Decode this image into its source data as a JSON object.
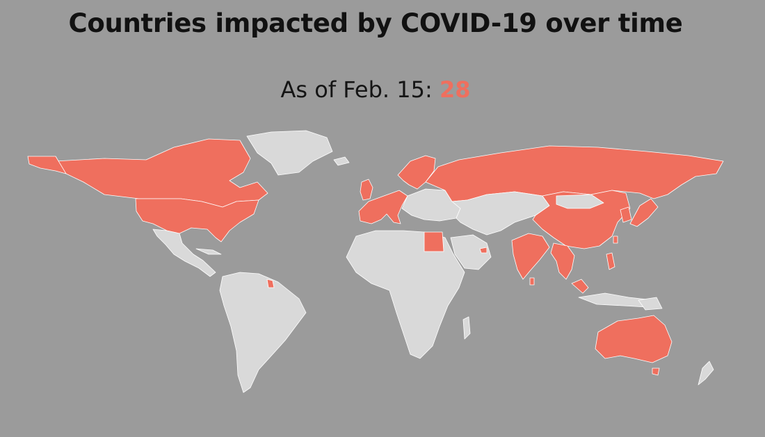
{
  "title": "Countries impacted by COVID-19 over time",
  "subtitle": {
    "prefix": "As of Feb. 15:",
    "count": "28"
  },
  "colors": {
    "background": "#9b9b9b",
    "unaffected": "#d9d9d9",
    "affected": "#ef6f5e",
    "count": "#ef6f5e"
  },
  "map": {
    "affected_regions": [
      "United States",
      "Canada",
      "France",
      "United Kingdom",
      "Germany",
      "Italy",
      "Spain",
      "Belgium",
      "Finland",
      "Sweden",
      "Russia",
      "Egypt",
      "United Arab Emirates",
      "India",
      "Nepal",
      "Sri Lanka",
      "China",
      "Japan",
      "South Korea",
      "Taiwan",
      "Philippines",
      "Vietnam",
      "Cambodia",
      "Thailand",
      "Malaysia",
      "Singapore",
      "Australia",
      "French Guiana"
    ]
  }
}
